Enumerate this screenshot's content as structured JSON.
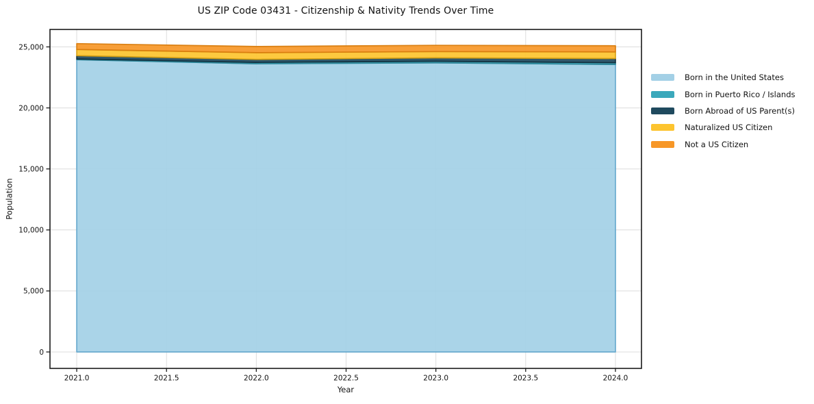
{
  "title": "US ZIP Code 03431 - Citizenship & Nativity Trends Over Time",
  "chart_data": {
    "type": "area",
    "stacked": true,
    "title": "US ZIP Code 03431 - Citizenship & Nativity Trends Over Time",
    "xlabel": "Year",
    "ylabel": "Population",
    "x": [
      2021,
      2022,
      2023,
      2024
    ],
    "series": [
      {
        "name": "Born in the United States",
        "color": "#a3d0e6",
        "edge": "#64a8cc",
        "values": [
          23950,
          23620,
          23690,
          23560
        ]
      },
      {
        "name": "Born in Puerto Rico / Islands",
        "color": "#3ba8bb",
        "edge": "#2a8496",
        "values": [
          60,
          110,
          130,
          145
        ]
      },
      {
        "name": "Born Abroad of US Parent(s)",
        "color": "#1f4a5e",
        "edge": "#122f3d",
        "values": [
          270,
          245,
          280,
          340
        ]
      },
      {
        "name": "Naturalized US Citizen",
        "color": "#fdc42f",
        "edge": "#d7a013",
        "values": [
          510,
          550,
          520,
          545
        ]
      },
      {
        "name": "Not a US Citizen",
        "color": "#f79727",
        "edge": "#d87c0e",
        "values": [
          480,
          505,
          510,
          505
        ]
      }
    ],
    "x_tick_labels": [
      "2021.0",
      "2021.5",
      "2022.0",
      "2022.5",
      "2023.0",
      "2023.5",
      "2024.0"
    ],
    "x_tick_values": [
      2021,
      2021.5,
      2022,
      2022.5,
      2023,
      2023.5,
      2024
    ],
    "y_tick_labels": [
      "0",
      "5,000",
      "10,000",
      "15,000",
      "20,000",
      "25,000"
    ],
    "y_tick_values": [
      0,
      5000,
      10000,
      15000,
      20000,
      25000
    ],
    "xlim": [
      2020.851,
      2024.145
    ],
    "ylim": [
      -1347,
      26430
    ],
    "grid": true,
    "grid_color": "#dcdcdc",
    "spine_color": "#1a1a1a",
    "legend_position": "right-outside"
  }
}
